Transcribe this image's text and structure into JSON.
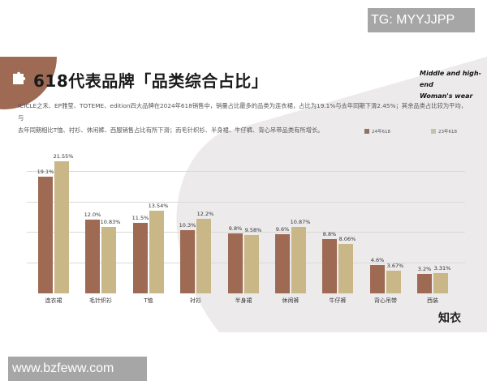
{
  "watermarks": {
    "top_right": "TG: MYYJJPP",
    "bottom_left": "www.bzfeww.com"
  },
  "header": {
    "title": "618代表品牌「品类综合占比」",
    "subtitle_line1": "Middle and high-end",
    "subtitle_line2": "Woman's wear",
    "puzzle_icon": "puzzle-piece-icon"
  },
  "description": {
    "line1": "ICICLE之禾、EP雅莹、TOTEME、edition四大品牌在2024年618销售中，销量占比最多的品类为连衣裙，占比为19.1%与去年同期下滑2.45%；其余品类占比较为平均，与",
    "line2": "去年同期相比T恤、衬衫、休闲裤、西服销售占比有所下滑；而毛针织衫、半身裙、牛仔裤、背心吊带品类有所增长。"
  },
  "logo": "知衣",
  "colors": {
    "series_2024": "#9e6a54",
    "series_2023": "#c9b788",
    "accent_circle": "#9e6a54",
    "background_shape": "#eceaea"
  },
  "chart_data": {
    "type": "bar",
    "title": "618代表品牌「品类综合占比」",
    "xlabel": "",
    "ylabel": "",
    "ylim": [
      0,
      25
    ],
    "grid": true,
    "legend_position": "top-right",
    "categories": [
      "连衣裙",
      "毛针织衫",
      "T恤",
      "衬衫",
      "半身裙",
      "休闲裤",
      "牛仔裤",
      "背心吊带",
      "西装"
    ],
    "series": [
      {
        "name": "24年618",
        "color": "#9e6a54",
        "values": [
          19.1,
          12.0,
          11.5,
          10.3,
          9.8,
          9.6,
          8.8,
          4.6,
          3.2
        ],
        "labels": [
          "19.1%",
          "12.0%",
          "11.5%",
          "10.3%",
          "9.8%",
          "9.6%",
          "8.8%",
          "4.6%",
          "3.2%"
        ]
      },
      {
        "name": "23年618",
        "color": "#c9b788",
        "values": [
          21.55,
          10.83,
          13.54,
          12.2,
          9.58,
          10.87,
          8.06,
          3.67,
          3.31
        ],
        "labels": [
          "21.55%",
          "10.83%",
          "13.54%",
          "12.2%",
          "9.58%",
          "10.87%",
          "8.06%",
          "3.67%",
          "3.31%"
        ]
      }
    ]
  }
}
